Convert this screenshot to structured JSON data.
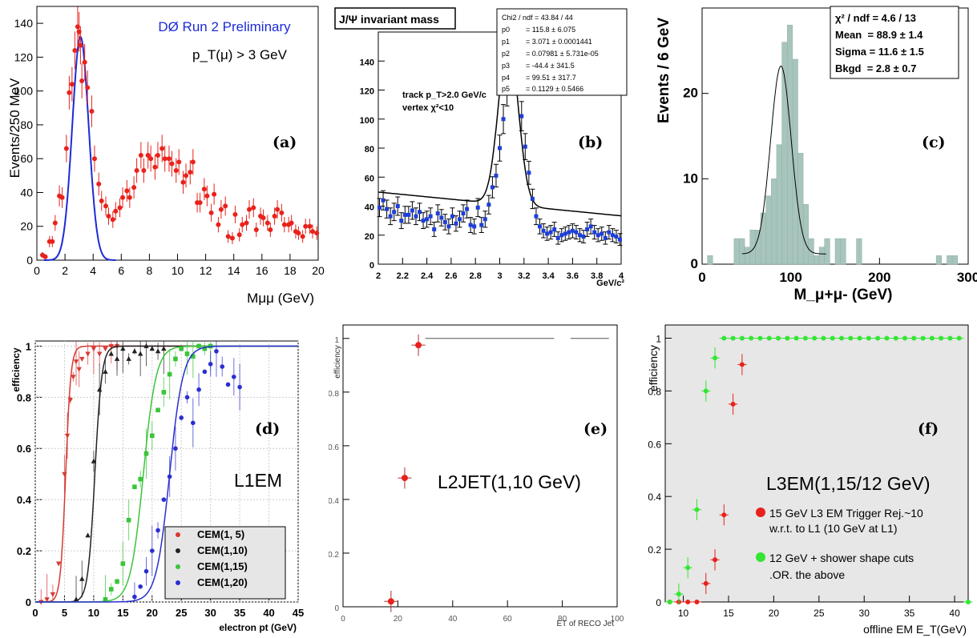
{
  "chart_data": [
    {
      "id": "a",
      "type": "scatter",
      "panel_label": "(a)",
      "title": "DØ Run 2 Preliminary",
      "annotation": "p_T(μ) > 3 GeV",
      "xlabel": "Mμμ (GeV)",
      "ylabel": "Events/250 MeV",
      "xlim": [
        0,
        20
      ],
      "ylim": [
        0,
        150
      ],
      "xticks": [
        0,
        2,
        4,
        6,
        8,
        10,
        12,
        14,
        16,
        18,
        20
      ],
      "yticks": [
        0,
        20,
        40,
        60,
        80,
        100,
        120,
        140
      ],
      "colors": {
        "points": "#e8221b",
        "fit": "#1c2bd6",
        "title": "#1c2bd6"
      },
      "fit": {
        "amplitude": 132,
        "mean": 3.1,
        "sigma": 0.58,
        "range": [
          0.5,
          5.6
        ]
      },
      "series": [
        {
          "x": [
            0.4,
            0.6,
            0.9,
            1.1,
            1.3,
            1.6,
            1.8,
            2.1,
            2.3,
            2.5,
            2.7,
            2.9,
            3.0,
            3.1,
            3.2,
            3.4,
            3.6,
            3.9,
            4.1,
            4.4,
            4.6,
            4.9,
            5.1,
            5.4,
            5.6,
            5.9,
            6.1,
            6.4,
            6.6,
            6.9,
            7.1,
            7.4,
            7.6,
            7.9,
            8.1,
            8.4,
            8.6,
            8.9,
            9.1,
            9.4,
            9.6,
            9.9,
            10.1,
            10.4,
            10.6,
            10.9,
            11.1,
            11.4,
            11.6,
            11.9,
            12.1,
            12.4,
            12.6,
            12.9,
            13.1,
            13.4,
            13.6,
            13.9,
            14.1,
            14.4,
            14.6,
            14.9,
            15.1,
            15.4,
            15.6,
            15.9,
            16.1,
            16.4,
            16.6,
            16.9,
            17.1,
            17.4,
            17.6,
            17.9,
            18.1,
            18.4,
            18.6,
            18.9,
            19.1,
            19.4,
            19.6,
            19.9
          ],
          "y": [
            3,
            2,
            11,
            11,
            22,
            38,
            37,
            66,
            99,
            104,
            124,
            138,
            135,
            127,
            106,
            117,
            102,
            88,
            60,
            45,
            35,
            32,
            26,
            24,
            29,
            31,
            37,
            41,
            37,
            43,
            53,
            62,
            53,
            62,
            60,
            55,
            62,
            66,
            60,
            60,
            57,
            53,
            58,
            46,
            50,
            52,
            58,
            34,
            34,
            42,
            38,
            28,
            39,
            21,
            30,
            32,
            14,
            13,
            27,
            15,
            21,
            22,
            30,
            31,
            18,
            26,
            25,
            22,
            18,
            26,
            30,
            28,
            21,
            21,
            22,
            17,
            16,
            14,
            20,
            20,
            17,
            16
          ]
        }
      ]
    },
    {
      "id": "b",
      "type": "scatter",
      "panel_label": "(b)",
      "title": "J/Ψ invariant mass",
      "annotation_lines": [
        "track p_T>2.0 GeV/c",
        "vertex χ²<10"
      ],
      "stats_box": [
        "Chi2 / ndf = 43.84 / 44",
        "p0        = 115.8 ± 6.075",
        "p1        = 3.071 ± 0.0001441",
        "p2        = 0.07981 ± 5.731e-05",
        "p3        = -44.4 ± 341.5",
        "p4        = 99.51 ± 317.7",
        "p5        = 0.1129 ± 0.5466"
      ],
      "xlabel": "GeV/c²",
      "ylabel": "",
      "xlim": [
        2,
        4
      ],
      "ylim": [
        0,
        160
      ],
      "xticks": [
        2,
        2.2,
        2.4,
        2.6,
        2.8,
        3,
        3.2,
        3.4,
        3.6,
        3.8,
        4
      ],
      "yticks": [
        0,
        20,
        40,
        60,
        80,
        100,
        120,
        140
      ],
      "colors": {
        "points": "#1e3fd8",
        "fit": "#000000"
      },
      "fit": {
        "amplitude": 115.8,
        "mean": 3.071,
        "sigma": 0.07981
      },
      "series": [
        {
          "x": [
            2.01,
            2.04,
            2.07,
            2.1,
            2.13,
            2.16,
            2.19,
            2.22,
            2.25,
            2.28,
            2.31,
            2.34,
            2.37,
            2.4,
            2.43,
            2.46,
            2.49,
            2.52,
            2.55,
            2.58,
            2.61,
            2.64,
            2.67,
            2.7,
            2.73,
            2.76,
            2.79,
            2.82,
            2.85,
            2.88,
            2.91,
            2.94,
            2.97,
            3.0,
            3.03,
            3.06,
            3.09,
            3.12,
            3.15,
            3.18,
            3.21,
            3.24,
            3.27,
            3.3,
            3.33,
            3.36,
            3.39,
            3.42,
            3.45,
            3.48,
            3.51,
            3.54,
            3.57,
            3.6,
            3.63,
            3.66,
            3.69,
            3.72,
            3.75,
            3.78,
            3.81,
            3.84,
            3.87,
            3.9,
            3.93,
            3.96,
            3.99
          ],
          "y": [
            39,
            44,
            38,
            33,
            36,
            40,
            30,
            34,
            34,
            37,
            33,
            36,
            30,
            31,
            33,
            24,
            35,
            32,
            29,
            26,
            33,
            28,
            31,
            35,
            38,
            27,
            26,
            39,
            27,
            31,
            41,
            53,
            61,
            80,
            100,
            120,
            148,
            144,
            128,
            102,
            81,
            63,
            45,
            33,
            26,
            23,
            21,
            22,
            24,
            18,
            20,
            21,
            22,
            23,
            22,
            20,
            19,
            24,
            26,
            22,
            20,
            21,
            18,
            22,
            20,
            19,
            17
          ]
        }
      ]
    },
    {
      "id": "c",
      "type": "bar",
      "panel_label": "(c)",
      "stats_box": [
        "χ² / ndf = 4.6 / 13",
        "Mean  = 88.9 ± 1.4",
        "Sigma = 11.6 ± 1.5",
        "Bkgd  = 2.8 ± 0.7"
      ],
      "xlabel": "M_μ+μ-  (GeV)",
      "ylabel": "Events / 6  GeV",
      "xlim": [
        0,
        300
      ],
      "ylim": [
        0,
        30
      ],
      "xticks": [
        0,
        100,
        200,
        300
      ],
      "yticks": [
        0,
        10,
        20
      ],
      "colors": {
        "bars": "#a8c5bd",
        "fit": "#000000"
      },
      "fit": {
        "amplitude": 22,
        "mean": 88.9,
        "sigma": 11.6,
        "background": 1.2,
        "range": [
          45,
          140
        ]
      },
      "bins": {
        "start": 6,
        "width": 6
      },
      "values": [
        1,
        0,
        0,
        0,
        0,
        3,
        3,
        2,
        4,
        4,
        6,
        8,
        10,
        14,
        26,
        28,
        24,
        13,
        7,
        3,
        1,
        2,
        3,
        0,
        3,
        3,
        0,
        0,
        3,
        0,
        0,
        0,
        0,
        0,
        0,
        0,
        0,
        0,
        0,
        0,
        0,
        0,
        0,
        1,
        0,
        1,
        1,
        0,
        0,
        0,
        0,
        0,
        0,
        0,
        0,
        0,
        0,
        1
      ]
    },
    {
      "id": "d",
      "type": "line",
      "panel_label": "(d)",
      "annotation": "L1EM",
      "xlabel": "electron pt (GeV)",
      "ylabel": "efficiency",
      "xlim": [
        0,
        45
      ],
      "ylim": [
        0,
        1.02
      ],
      "xticks": [
        0,
        5,
        10,
        15,
        20,
        25,
        30,
        35,
        40,
        45
      ],
      "yticks": [
        0,
        0.2,
        0.4,
        0.6,
        0.8,
        1
      ],
      "legend_position": "bottom-right",
      "series": [
        {
          "name": "CEM(1,  5)",
          "color": "#d63a33",
          "marker": "triangle-down",
          "threshold": 5.2,
          "width": 0.9,
          "x": [
            1,
            2,
            3,
            4,
            5,
            5.5,
            6,
            6.5,
            7,
            7.5,
            8,
            9,
            10,
            11,
            12,
            13,
            14
          ],
          "y": [
            0,
            0.01,
            0.03,
            0.15,
            0.5,
            0.65,
            0.79,
            0.88,
            0.94,
            0.91,
            0.95,
            0.97,
            0.99,
            0.97,
            0.99,
            1,
            1
          ]
        },
        {
          "name": "CEM(1,10)",
          "color": "#222222",
          "marker": "triangle-up",
          "threshold": 10.2,
          "width": 1.2,
          "x": [
            7,
            8,
            9,
            10,
            11,
            12,
            13,
            14,
            15,
            16,
            17,
            18,
            19,
            20,
            21,
            22
          ],
          "y": [
            0.01,
            0.09,
            0.26,
            0.55,
            0.83,
            0.9,
            0.97,
            0.95,
            0.99,
            0.95,
            0.98,
            0.97,
            1,
            0.99,
            0.98,
            0.99
          ]
        },
        {
          "name": "CEM(1,15)",
          "color": "#3ac43a",
          "marker": "square",
          "threshold": 18.5,
          "width": 2.2,
          "x": [
            12,
            13,
            14,
            15,
            16,
            17,
            18,
            19,
            20,
            21,
            22,
            23,
            24,
            25,
            26,
            27,
            28,
            29,
            30
          ],
          "y": [
            0.01,
            0.05,
            0.08,
            0.15,
            0.32,
            0.45,
            0.48,
            0.58,
            0.65,
            0.75,
            0.82,
            0.89,
            0.95,
            0.99,
            0.97,
            0.96,
            1,
            0.99,
            1
          ]
        },
        {
          "name": "CEM(1,20)",
          "color": "#2a2ed0",
          "marker": "circle",
          "threshold": 23,
          "width": 2.3,
          "x": [
            17,
            18,
            19,
            20,
            21,
            22,
            23,
            24,
            25,
            26,
            27,
            28,
            29,
            30,
            31,
            32,
            33,
            34,
            35
          ],
          "y": [
            0.02,
            0.06,
            0.12,
            0.2,
            0.28,
            0.4,
            0.49,
            0.6,
            0.72,
            0.8,
            0.7,
            0.83,
            0.9,
            0.93,
            0.98,
            0.92,
            0.85,
            0.88,
            0.84
          ]
        }
      ]
    },
    {
      "id": "e",
      "type": "scatter",
      "panel_label": "(e)",
      "annotation": "L2JET(1,10 GeV)",
      "xlabel": "ET of RECO Jet",
      "ylabel": "efficiency",
      "xlim": [
        0,
        100
      ],
      "ylim": [
        0,
        1.05
      ],
      "xticks": [
        0,
        20,
        40,
        60,
        80,
        100
      ],
      "yticks": [
        0,
        0.2,
        0.4,
        0.6,
        0.8,
        1
      ],
      "colors": {
        "points": "#e8221b",
        "line": "#555555"
      },
      "series": [
        {
          "x": [
            17.5,
            22.5,
            27.5
          ],
          "y": [
            0.02,
            0.48,
            0.975
          ]
        }
      ],
      "plateau": {
        "y": 1.0,
        "segments": [
          [
            30,
            77
          ],
          [
            83,
            97
          ]
        ]
      }
    },
    {
      "id": "f",
      "type": "scatter",
      "panel_label": "(f)",
      "annotation": "L3EM(1,15/12 GeV)",
      "xlabel": "offline EM E_T(GeV)",
      "ylabel": "efficiency",
      "xlim": [
        8,
        41.5
      ],
      "ylim": [
        0,
        1.05
      ],
      "xticks": [
        10,
        15,
        20,
        25,
        30,
        35,
        40
      ],
      "yticks": [
        0,
        0.2,
        0.4,
        0.6,
        0.8,
        1
      ],
      "legend": [
        {
          "label": "15 GeV L3 EM Trigger Rej.~10",
          "label2": "w.r.t. to L1 (10 GeV at L1)",
          "color": "#e8221b"
        },
        {
          "label": "12 GeV + shower shape cuts",
          "label2": ".OR. the above",
          "color": "#33e633"
        }
      ],
      "series": [
        {
          "name": "15 GeV L3 EM Trigger",
          "color": "#e8221b",
          "x": [
            8.5,
            9.5,
            10.5,
            11.5,
            12.5,
            13.5,
            14.5,
            15.5,
            16.5
          ],
          "y": [
            0,
            0,
            0,
            0,
            0.07,
            0.16,
            0.33,
            0.75,
            0.9
          ]
        },
        {
          "name": "12 GeV + shower shape cuts",
          "color": "#33e633",
          "x": [
            8.5,
            9.5,
            10.5,
            11.5,
            12.5,
            13.5,
            14.5,
            15.5,
            16.5,
            17.5,
            18.5,
            19.5,
            20.5,
            21.5,
            22.5,
            23.5,
            24.5,
            25.5,
            26.5,
            27.5,
            28.5,
            29.5,
            30.5,
            31.5,
            32.5,
            33.5,
            34.5,
            35.5,
            36.5,
            37.5,
            38.5,
            39.5,
            40.5,
            41.5
          ],
          "y": [
            0,
            0.03,
            0.13,
            0.35,
            0.8,
            0.925,
            1,
            1,
            1,
            1,
            1,
            1,
            1,
            1,
            1,
            1,
            1,
            1,
            1,
            1,
            1,
            1,
            1,
            1,
            1,
            1,
            1,
            1,
            1,
            1,
            1,
            1,
            1,
            0
          ]
        }
      ]
    }
  ]
}
